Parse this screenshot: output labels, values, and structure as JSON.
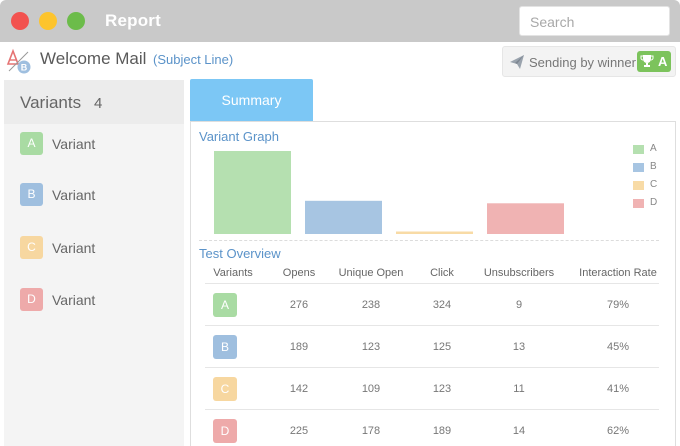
{
  "window": {
    "title": "Report"
  },
  "search": {
    "placeholder": "Search"
  },
  "header": {
    "mail_title": "Welcome Mail",
    "subject_link": "(Subject Line)",
    "winner_text": "Sending by winner",
    "winner_variant": "A"
  },
  "colors": {
    "A": "#b5e0b0",
    "B": "#a7c5e2",
    "C": "#f8dba6",
    "D": "#f0b3b3",
    "badgeA": "#a9dba3",
    "badgeB": "#9fbfdf",
    "badgeC": "#f7d7a0",
    "badgeD": "#eeaaaa",
    "accent": "#7cc7f5",
    "link": "#5b93c9"
  },
  "sidebar": {
    "title": "Variants",
    "count": "4",
    "items": [
      {
        "letter": "A",
        "label": "Variant"
      },
      {
        "letter": "B",
        "label": "Variant"
      },
      {
        "letter": "C",
        "label": "Variant"
      },
      {
        "letter": "D",
        "label": "Variant"
      }
    ]
  },
  "tabs": [
    {
      "label": "Summary",
      "active": true
    }
  ],
  "graph": {
    "title": "Variant Graph"
  },
  "chart_data": {
    "type": "bar",
    "categories": [
      "A",
      "B",
      "C",
      "D"
    ],
    "values": [
      100,
      40,
      3,
      37
    ],
    "legend": [
      "A",
      "B",
      "C",
      "D"
    ],
    "legend_position": "right",
    "grid": false,
    "ylim": [
      0,
      100
    ]
  },
  "overview": {
    "title": "Test Overview",
    "headers": [
      "Variants",
      "Opens",
      "Unique Open",
      "Click",
      "Unsubscribers",
      "Interaction Rate"
    ],
    "rows": [
      {
        "variant": "A",
        "opens": "276",
        "unique_open": "238",
        "click": "324",
        "unsubscribers": "9",
        "rate": "79%"
      },
      {
        "variant": "B",
        "opens": "189",
        "unique_open": "123",
        "click": "125",
        "unsubscribers": "13",
        "rate": "45%"
      },
      {
        "variant": "C",
        "opens": "142",
        "unique_open": "109",
        "click": "123",
        "unsubscribers": "11",
        "rate": "41%"
      },
      {
        "variant": "D",
        "opens": "225",
        "unique_open": "178",
        "click": "189",
        "unsubscribers": "14",
        "rate": "62%"
      }
    ]
  }
}
